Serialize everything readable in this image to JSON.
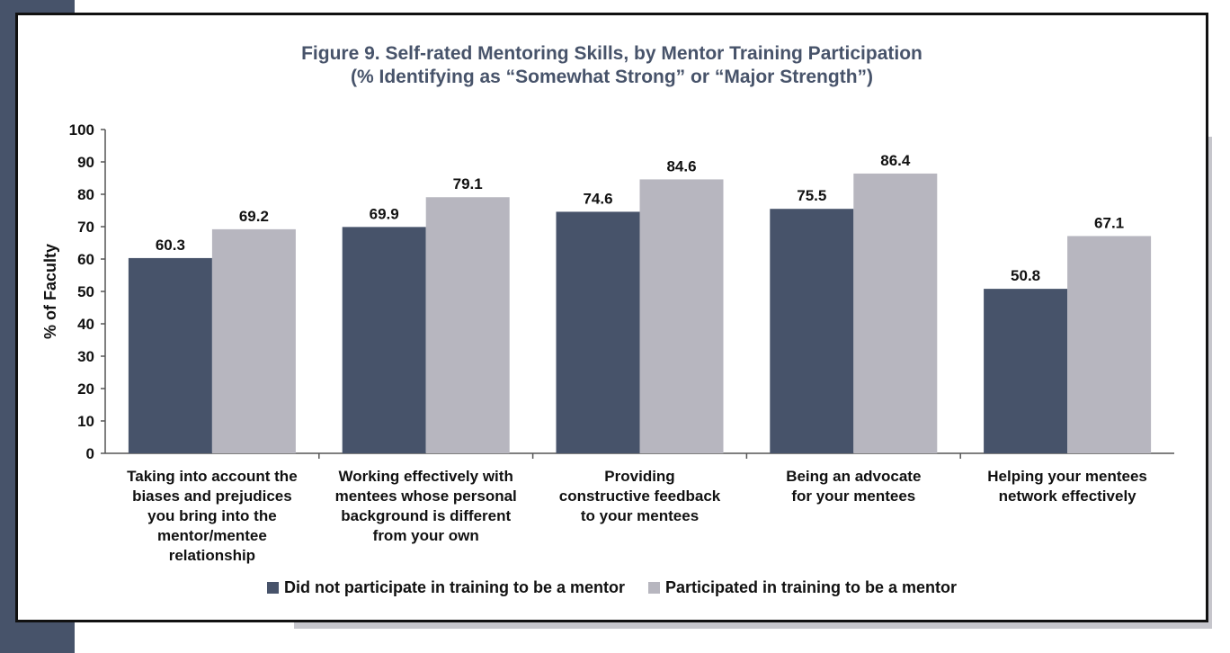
{
  "colors": {
    "band": "#47536a",
    "series_dark": "#47536a",
    "series_light": "#b7b6bf",
    "title": "#47536a",
    "frame_shadow": "#c6c6cc"
  },
  "chart_data": {
    "type": "bar",
    "title": "Figure 9. Self-rated Mentoring Skills, by Mentor Training Participation",
    "subtitle": "(% Identifying as “Somewhat Strong” or “Major Strength”)",
    "xlabel": "",
    "ylabel": "% of Faculty",
    "ylim": [
      0,
      100
    ],
    "yticks": [
      0,
      10,
      20,
      30,
      40,
      50,
      60,
      70,
      80,
      90,
      100
    ],
    "grid": false,
    "legend_position": "bottom",
    "categories": [
      [
        "Taking into account the",
        "biases and prejudices",
        "you bring into the",
        "mentor/mentee",
        "relationship"
      ],
      [
        "Working effectively with",
        "mentees whose personal",
        "background is different",
        "from your own"
      ],
      [
        "Providing",
        "constructive feedback",
        "to your mentees"
      ],
      [
        "Being an advocate",
        "for your mentees"
      ],
      [
        "Helping your mentees",
        "network effectively"
      ]
    ],
    "series": [
      {
        "name": "Did not participate in training to be a mentor",
        "color": "#47536a",
        "values": [
          60.3,
          69.9,
          74.6,
          75.5,
          50.8
        ]
      },
      {
        "name": "Participated in training to be a mentor",
        "color": "#b7b6bf",
        "values": [
          69.2,
          79.1,
          84.6,
          86.4,
          67.1
        ]
      }
    ]
  }
}
